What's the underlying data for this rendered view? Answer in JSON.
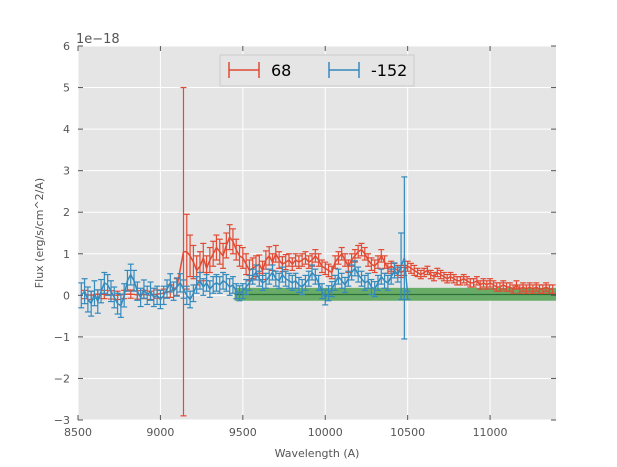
{
  "chart_data": {
    "type": "line",
    "xlabel": "Wavelength (A)",
    "ylabel": "Flux (erg/s/cm^2/A)",
    "y_offset_label": "1e−18",
    "xlim": [
      8500,
      11400
    ],
    "ylim": [
      -3,
      6
    ],
    "x_ticks": [
      8500,
      9000,
      9500,
      10000,
      10500,
      11000
    ],
    "x_tick_labels": [
      "8500",
      "9000",
      "9500",
      "10000",
      "10500",
      "11000"
    ],
    "y_ticks": [
      -3,
      -2,
      -1,
      0,
      1,
      2,
      3,
      4,
      5,
      6
    ],
    "y_tick_labels": [
      "−3",
      "−2",
      "−1",
      "0",
      "1",
      "2",
      "3",
      "4",
      "5",
      "6"
    ],
    "grid": true,
    "legend_position": "top-center",
    "colors": {
      "background": "#e5e5e5",
      "grid": "#ffffff",
      "series_68": "#e24a33",
      "series_neg152": "#348abd",
      "band_fill": "#5aa55a",
      "band_line": "#2d6e3a"
    },
    "series": [
      {
        "name": "68",
        "color": "#e24a33",
        "points": [
          [
            8540,
            0.02,
            0.1
          ],
          [
            8580,
            0.0,
            0.1
          ],
          [
            8620,
            0.03,
            0.1
          ],
          [
            8660,
            0.02,
            0.1
          ],
          [
            8700,
            0.01,
            0.1
          ],
          [
            8740,
            0.0,
            0.1
          ],
          [
            8780,
            0.02,
            0.1
          ],
          [
            8820,
            0.03,
            0.1
          ],
          [
            8860,
            0.01,
            0.1
          ],
          [
            8900,
            0.02,
            0.1
          ],
          [
            8940,
            0.0,
            0.1
          ],
          [
            8980,
            0.03,
            0.1
          ],
          [
            9020,
            0.05,
            0.1
          ],
          [
            9060,
            0.1,
            0.15
          ],
          [
            9100,
            0.2,
            0.2
          ],
          [
            9140,
            1.05,
            3.95
          ],
          [
            9160,
            1.05,
            0.9
          ],
          [
            9180,
            0.95,
            0.5
          ],
          [
            9200,
            0.8,
            0.4
          ],
          [
            9220,
            0.6,
            0.35
          ],
          [
            9240,
            0.7,
            0.35
          ],
          [
            9260,
            0.9,
            0.35
          ],
          [
            9280,
            0.65,
            0.3
          ],
          [
            9300,
            0.85,
            0.3
          ],
          [
            9320,
            1.0,
            0.3
          ],
          [
            9340,
            1.15,
            0.3
          ],
          [
            9360,
            1.05,
            0.3
          ],
          [
            9380,
            0.95,
            0.3
          ],
          [
            9400,
            1.2,
            0.3
          ],
          [
            9420,
            1.4,
            0.3
          ],
          [
            9440,
            1.3,
            0.3
          ],
          [
            9460,
            1.1,
            0.25
          ],
          [
            9480,
            0.95,
            0.25
          ],
          [
            9500,
            0.9,
            0.25
          ],
          [
            9520,
            0.75,
            0.25
          ],
          [
            9540,
            0.6,
            0.25
          ],
          [
            9560,
            0.65,
            0.25
          ],
          [
            9580,
            0.7,
            0.25
          ],
          [
            9600,
            0.75,
            0.22
          ],
          [
            9620,
            0.6,
            0.22
          ],
          [
            9640,
            0.85,
            0.22
          ],
          [
            9660,
            0.95,
            0.22
          ],
          [
            9680,
            0.8,
            0.2
          ],
          [
            9700,
            1.0,
            0.2
          ],
          [
            9720,
            0.85,
            0.2
          ],
          [
            9740,
            0.75,
            0.18
          ],
          [
            9760,
            0.8,
            0.18
          ],
          [
            9780,
            0.85,
            0.15
          ],
          [
            9800,
            0.75,
            0.15
          ],
          [
            9820,
            0.85,
            0.15
          ],
          [
            9840,
            0.8,
            0.15
          ],
          [
            9860,
            0.85,
            0.15
          ],
          [
            9880,
            0.9,
            0.15
          ],
          [
            9900,
            0.8,
            0.15
          ],
          [
            9920,
            0.85,
            0.15
          ],
          [
            9940,
            0.95,
            0.15
          ],
          [
            9960,
            0.85,
            0.15
          ],
          [
            9980,
            0.7,
            0.15
          ],
          [
            10000,
            0.65,
            0.15
          ],
          [
            10020,
            0.6,
            0.15
          ],
          [
            10040,
            0.55,
            0.15
          ],
          [
            10060,
            0.8,
            0.15
          ],
          [
            10080,
            0.9,
            0.15
          ],
          [
            10100,
            1.0,
            0.15
          ],
          [
            10120,
            0.85,
            0.15
          ],
          [
            10140,
            0.7,
            0.15
          ],
          [
            10160,
            0.85,
            0.15
          ],
          [
            10180,
            0.95,
            0.15
          ],
          [
            10200,
            1.05,
            0.15
          ],
          [
            10220,
            1.1,
            0.15
          ],
          [
            10240,
            1.0,
            0.15
          ],
          [
            10260,
            0.85,
            0.15
          ],
          [
            10280,
            0.75,
            0.15
          ],
          [
            10300,
            0.7,
            0.15
          ],
          [
            10320,
            0.8,
            0.15
          ],
          [
            10340,
            0.95,
            0.15
          ],
          [
            10360,
            0.8,
            0.15
          ],
          [
            10380,
            0.65,
            0.12
          ],
          [
            10400,
            0.7,
            0.12
          ],
          [
            10420,
            0.65,
            0.12
          ],
          [
            10440,
            0.6,
            0.12
          ],
          [
            10460,
            0.55,
            0.12
          ],
          [
            10480,
            0.6,
            0.12
          ],
          [
            10500,
            0.7,
            0.12
          ],
          [
            10520,
            0.65,
            0.12
          ],
          [
            10540,
            0.6,
            0.12
          ],
          [
            10560,
            0.55,
            0.1
          ],
          [
            10580,
            0.5,
            0.1
          ],
          [
            10600,
            0.55,
            0.1
          ],
          [
            10620,
            0.6,
            0.1
          ],
          [
            10640,
            0.5,
            0.1
          ],
          [
            10660,
            0.45,
            0.1
          ],
          [
            10680,
            0.55,
            0.1
          ],
          [
            10700,
            0.5,
            0.1
          ],
          [
            10720,
            0.45,
            0.1
          ],
          [
            10740,
            0.4,
            0.1
          ],
          [
            10760,
            0.45,
            0.1
          ],
          [
            10780,
            0.4,
            0.1
          ],
          [
            10800,
            0.35,
            0.1
          ],
          [
            10820,
            0.35,
            0.1
          ],
          [
            10840,
            0.4,
            0.1
          ],
          [
            10860,
            0.35,
            0.1
          ],
          [
            10880,
            0.3,
            0.1
          ],
          [
            10900,
            0.3,
            0.1
          ],
          [
            10920,
            0.35,
            0.1
          ],
          [
            10940,
            0.25,
            0.1
          ],
          [
            10960,
            0.3,
            0.1
          ],
          [
            10980,
            0.25,
            0.1
          ],
          [
            11000,
            0.3,
            0.1
          ],
          [
            11020,
            0.25,
            0.1
          ],
          [
            11040,
            0.2,
            0.1
          ],
          [
            11060,
            0.2,
            0.1
          ],
          [
            11080,
            0.25,
            0.1
          ],
          [
            11100,
            0.2,
            0.1
          ],
          [
            11120,
            0.2,
            0.1
          ],
          [
            11140,
            0.15,
            0.1
          ],
          [
            11160,
            0.25,
            0.1
          ],
          [
            11180,
            0.15,
            0.1
          ],
          [
            11200,
            0.2,
            0.1
          ],
          [
            11220,
            0.15,
            0.1
          ],
          [
            11240,
            0.2,
            0.1
          ],
          [
            11260,
            0.15,
            0.1
          ],
          [
            11280,
            0.2,
            0.1
          ],
          [
            11300,
            0.15,
            0.1
          ],
          [
            11320,
            0.15,
            0.1
          ],
          [
            11340,
            0.2,
            0.1
          ],
          [
            11360,
            0.15,
            0.1
          ],
          [
            11380,
            0.15,
            0.1
          ]
        ]
      },
      {
        "name": "-152",
        "color": "#348abd",
        "points": [
          [
            8520,
            0.0,
            0.3
          ],
          [
            8540,
            0.1,
            0.3
          ],
          [
            8560,
            -0.1,
            0.3
          ],
          [
            8580,
            -0.2,
            0.3
          ],
          [
            8600,
            0.05,
            0.3
          ],
          [
            8620,
            -0.15,
            0.28
          ],
          [
            8640,
            0.1,
            0.28
          ],
          [
            8660,
            0.3,
            0.25
          ],
          [
            8680,
            0.25,
            0.25
          ],
          [
            8700,
            0.1,
            0.25
          ],
          [
            8720,
            -0.05,
            0.25
          ],
          [
            8740,
            -0.2,
            0.25
          ],
          [
            8760,
            -0.25,
            0.28
          ],
          [
            8780,
            0.0,
            0.28
          ],
          [
            8800,
            0.35,
            0.25
          ],
          [
            8820,
            0.5,
            0.25
          ],
          [
            8840,
            0.35,
            0.25
          ],
          [
            8860,
            0.1,
            0.22
          ],
          [
            8880,
            -0.05,
            0.22
          ],
          [
            8900,
            0.15,
            0.22
          ],
          [
            8920,
            0.0,
            0.22
          ],
          [
            8940,
            0.1,
            0.22
          ],
          [
            8960,
            -0.05,
            0.22
          ],
          [
            8980,
            0.0,
            0.22
          ],
          [
            9000,
            -0.1,
            0.22
          ],
          [
            9020,
            0.0,
            0.22
          ],
          [
            9040,
            0.15,
            0.22
          ],
          [
            9060,
            0.3,
            0.22
          ],
          [
            9080,
            0.1,
            0.22
          ],
          [
            9100,
            0.2,
            0.22
          ],
          [
            9120,
            0.3,
            0.22
          ],
          [
            9140,
            0.15,
            0.22
          ],
          [
            9160,
            0.0,
            0.22
          ],
          [
            9180,
            -0.1,
            0.2
          ],
          [
            9200,
            0.05,
            0.2
          ],
          [
            9220,
            0.25,
            0.2
          ],
          [
            9240,
            0.35,
            0.2
          ],
          [
            9260,
            0.2,
            0.2
          ],
          [
            9280,
            0.3,
            0.2
          ],
          [
            9300,
            0.15,
            0.2
          ],
          [
            9320,
            0.25,
            0.2
          ],
          [
            9340,
            0.3,
            0.2
          ],
          [
            9360,
            0.25,
            0.2
          ],
          [
            9380,
            0.35,
            0.2
          ],
          [
            9400,
            0.3,
            0.2
          ],
          [
            9420,
            0.2,
            0.2
          ],
          [
            9440,
            0.25,
            0.2
          ],
          [
            9460,
            0.1,
            0.18
          ],
          [
            9480,
            0.05,
            0.18
          ],
          [
            9500,
            0.1,
            0.18
          ],
          [
            9520,
            0.2,
            0.18
          ],
          [
            9540,
            0.3,
            0.18
          ],
          [
            9560,
            0.45,
            0.18
          ],
          [
            9580,
            0.55,
            0.18
          ],
          [
            9600,
            0.4,
            0.18
          ],
          [
            9620,
            0.3,
            0.18
          ],
          [
            9640,
            0.35,
            0.18
          ],
          [
            9660,
            0.45,
            0.18
          ],
          [
            9680,
            0.55,
            0.18
          ],
          [
            9700,
            0.4,
            0.18
          ],
          [
            9720,
            0.35,
            0.18
          ],
          [
            9740,
            0.5,
            0.18
          ],
          [
            9760,
            0.4,
            0.18
          ],
          [
            9780,
            0.35,
            0.18
          ],
          [
            9800,
            0.3,
            0.18
          ],
          [
            9820,
            0.35,
            0.18
          ],
          [
            9840,
            0.25,
            0.18
          ],
          [
            9860,
            0.2,
            0.18
          ],
          [
            9880,
            0.3,
            0.18
          ],
          [
            9900,
            0.4,
            0.18
          ],
          [
            9920,
            0.55,
            0.18
          ],
          [
            9940,
            0.45,
            0.18
          ],
          [
            9960,
            0.3,
            0.18
          ],
          [
            9980,
            0.1,
            0.18
          ],
          [
            10000,
            -0.05,
            0.18
          ],
          [
            10020,
            0.05,
            0.18
          ],
          [
            10040,
            0.15,
            0.18
          ],
          [
            10060,
            0.3,
            0.18
          ],
          [
            10080,
            0.45,
            0.18
          ],
          [
            10100,
            0.35,
            0.18
          ],
          [
            10120,
            0.25,
            0.18
          ],
          [
            10140,
            0.4,
            0.18
          ],
          [
            10160,
            0.55,
            0.18
          ],
          [
            10180,
            0.65,
            0.18
          ],
          [
            10200,
            0.5,
            0.18
          ],
          [
            10220,
            0.4,
            0.18
          ],
          [
            10240,
            0.3,
            0.18
          ],
          [
            10260,
            0.35,
            0.18
          ],
          [
            10280,
            0.2,
            0.18
          ],
          [
            10300,
            0.15,
            0.18
          ],
          [
            10320,
            0.3,
            0.18
          ],
          [
            10340,
            0.45,
            0.18
          ],
          [
            10360,
            0.35,
            0.18
          ],
          [
            10380,
            0.3,
            0.18
          ],
          [
            10400,
            0.45,
            0.18
          ],
          [
            10420,
            0.6,
            0.18
          ],
          [
            10440,
            0.5,
            0.18
          ],
          [
            10460,
            0.7,
            0.8
          ],
          [
            10480,
            0.9,
            1.95
          ],
          [
            10500,
            0.0,
            0.1
          ]
        ]
      }
    ],
    "band": {
      "x_start": 9450,
      "x_end": 11400,
      "y_low": -0.13,
      "y_high": 0.18,
      "y_line": 0.02
    }
  }
}
